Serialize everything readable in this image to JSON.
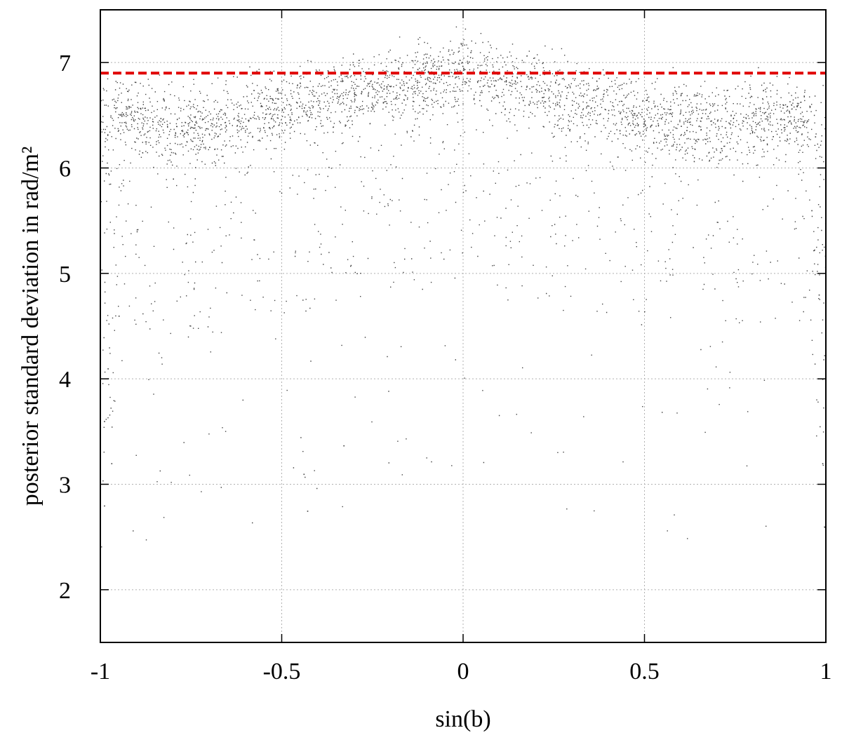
{
  "chart_data": {
    "type": "scatter",
    "xlabel": "sin(b)",
    "ylabel": "posterior standard deviation in rad/m²",
    "xlim": [
      -1,
      1
    ],
    "ylim": [
      1.5,
      7.5
    ],
    "x_ticks": [
      -1,
      -0.5,
      0,
      0.5,
      1
    ],
    "x_tick_labels": [
      "-1",
      "-0.5",
      "0",
      "0.5",
      "1"
    ],
    "y_ticks": [
      2,
      3,
      4,
      5,
      6,
      7
    ],
    "y_tick_labels": [
      "2",
      "3",
      "4",
      "5",
      "6",
      "7"
    ],
    "grid": true,
    "reference_line": {
      "y": 6.9,
      "style": "dashed",
      "color": "#e00000"
    },
    "point_color": "#000000",
    "density_profile": {
      "sin_b": [
        -1,
        -0.9,
        -0.8,
        -0.7,
        -0.6,
        -0.5,
        -0.4,
        -0.3,
        -0.2,
        -0.1,
        0,
        0.1,
        0.2,
        0.3,
        0.4,
        0.5,
        0.6,
        0.7,
        0.8,
        0.9,
        1
      ],
      "typical_sd": [
        6.55,
        6.5,
        6.4,
        6.4,
        6.5,
        6.6,
        6.65,
        6.72,
        6.8,
        6.85,
        6.9,
        6.85,
        6.75,
        6.65,
        6.6,
        6.45,
        6.45,
        6.45,
        6.5,
        6.5,
        6.4
      ]
    },
    "sample_points": [
      [
        -0.98,
        4.1
      ],
      [
        -0.99,
        3.6
      ],
      [
        -0.97,
        3.2
      ],
      [
        -0.99,
        2.8
      ],
      [
        -0.95,
        4.6
      ],
      [
        -0.9,
        5.4
      ],
      [
        -0.8,
        5.9
      ],
      [
        -0.7,
        6.2
      ],
      [
        -0.6,
        6.4
      ],
      [
        -0.5,
        6.55
      ],
      [
        -0.4,
        6.6
      ],
      [
        -0.33,
        3.37
      ],
      [
        -0.44,
        3.1
      ],
      [
        -0.43,
        2.75
      ],
      [
        -0.3,
        6.7
      ],
      [
        -0.2,
        6.78
      ],
      [
        -0.1,
        6.85
      ],
      [
        0,
        6.95
      ],
      [
        0.02,
        7.1
      ],
      [
        0.1,
        6.85
      ],
      [
        0.2,
        6.75
      ],
      [
        0.3,
        6.6
      ],
      [
        0.4,
        6.55
      ],
      [
        0.5,
        6.45
      ],
      [
        0.6,
        6.4
      ],
      [
        0.7,
        6.45
      ],
      [
        0.8,
        6.5
      ],
      [
        0.9,
        6.45
      ],
      [
        0.97,
        6.3
      ],
      [
        0.96,
        5.6
      ],
      [
        0.98,
        4.8
      ],
      [
        0.99,
        4.0
      ],
      [
        0.99,
        3.2
      ],
      [
        0.995,
        2.6
      ],
      [
        0.998,
        2.1
      ]
    ]
  }
}
